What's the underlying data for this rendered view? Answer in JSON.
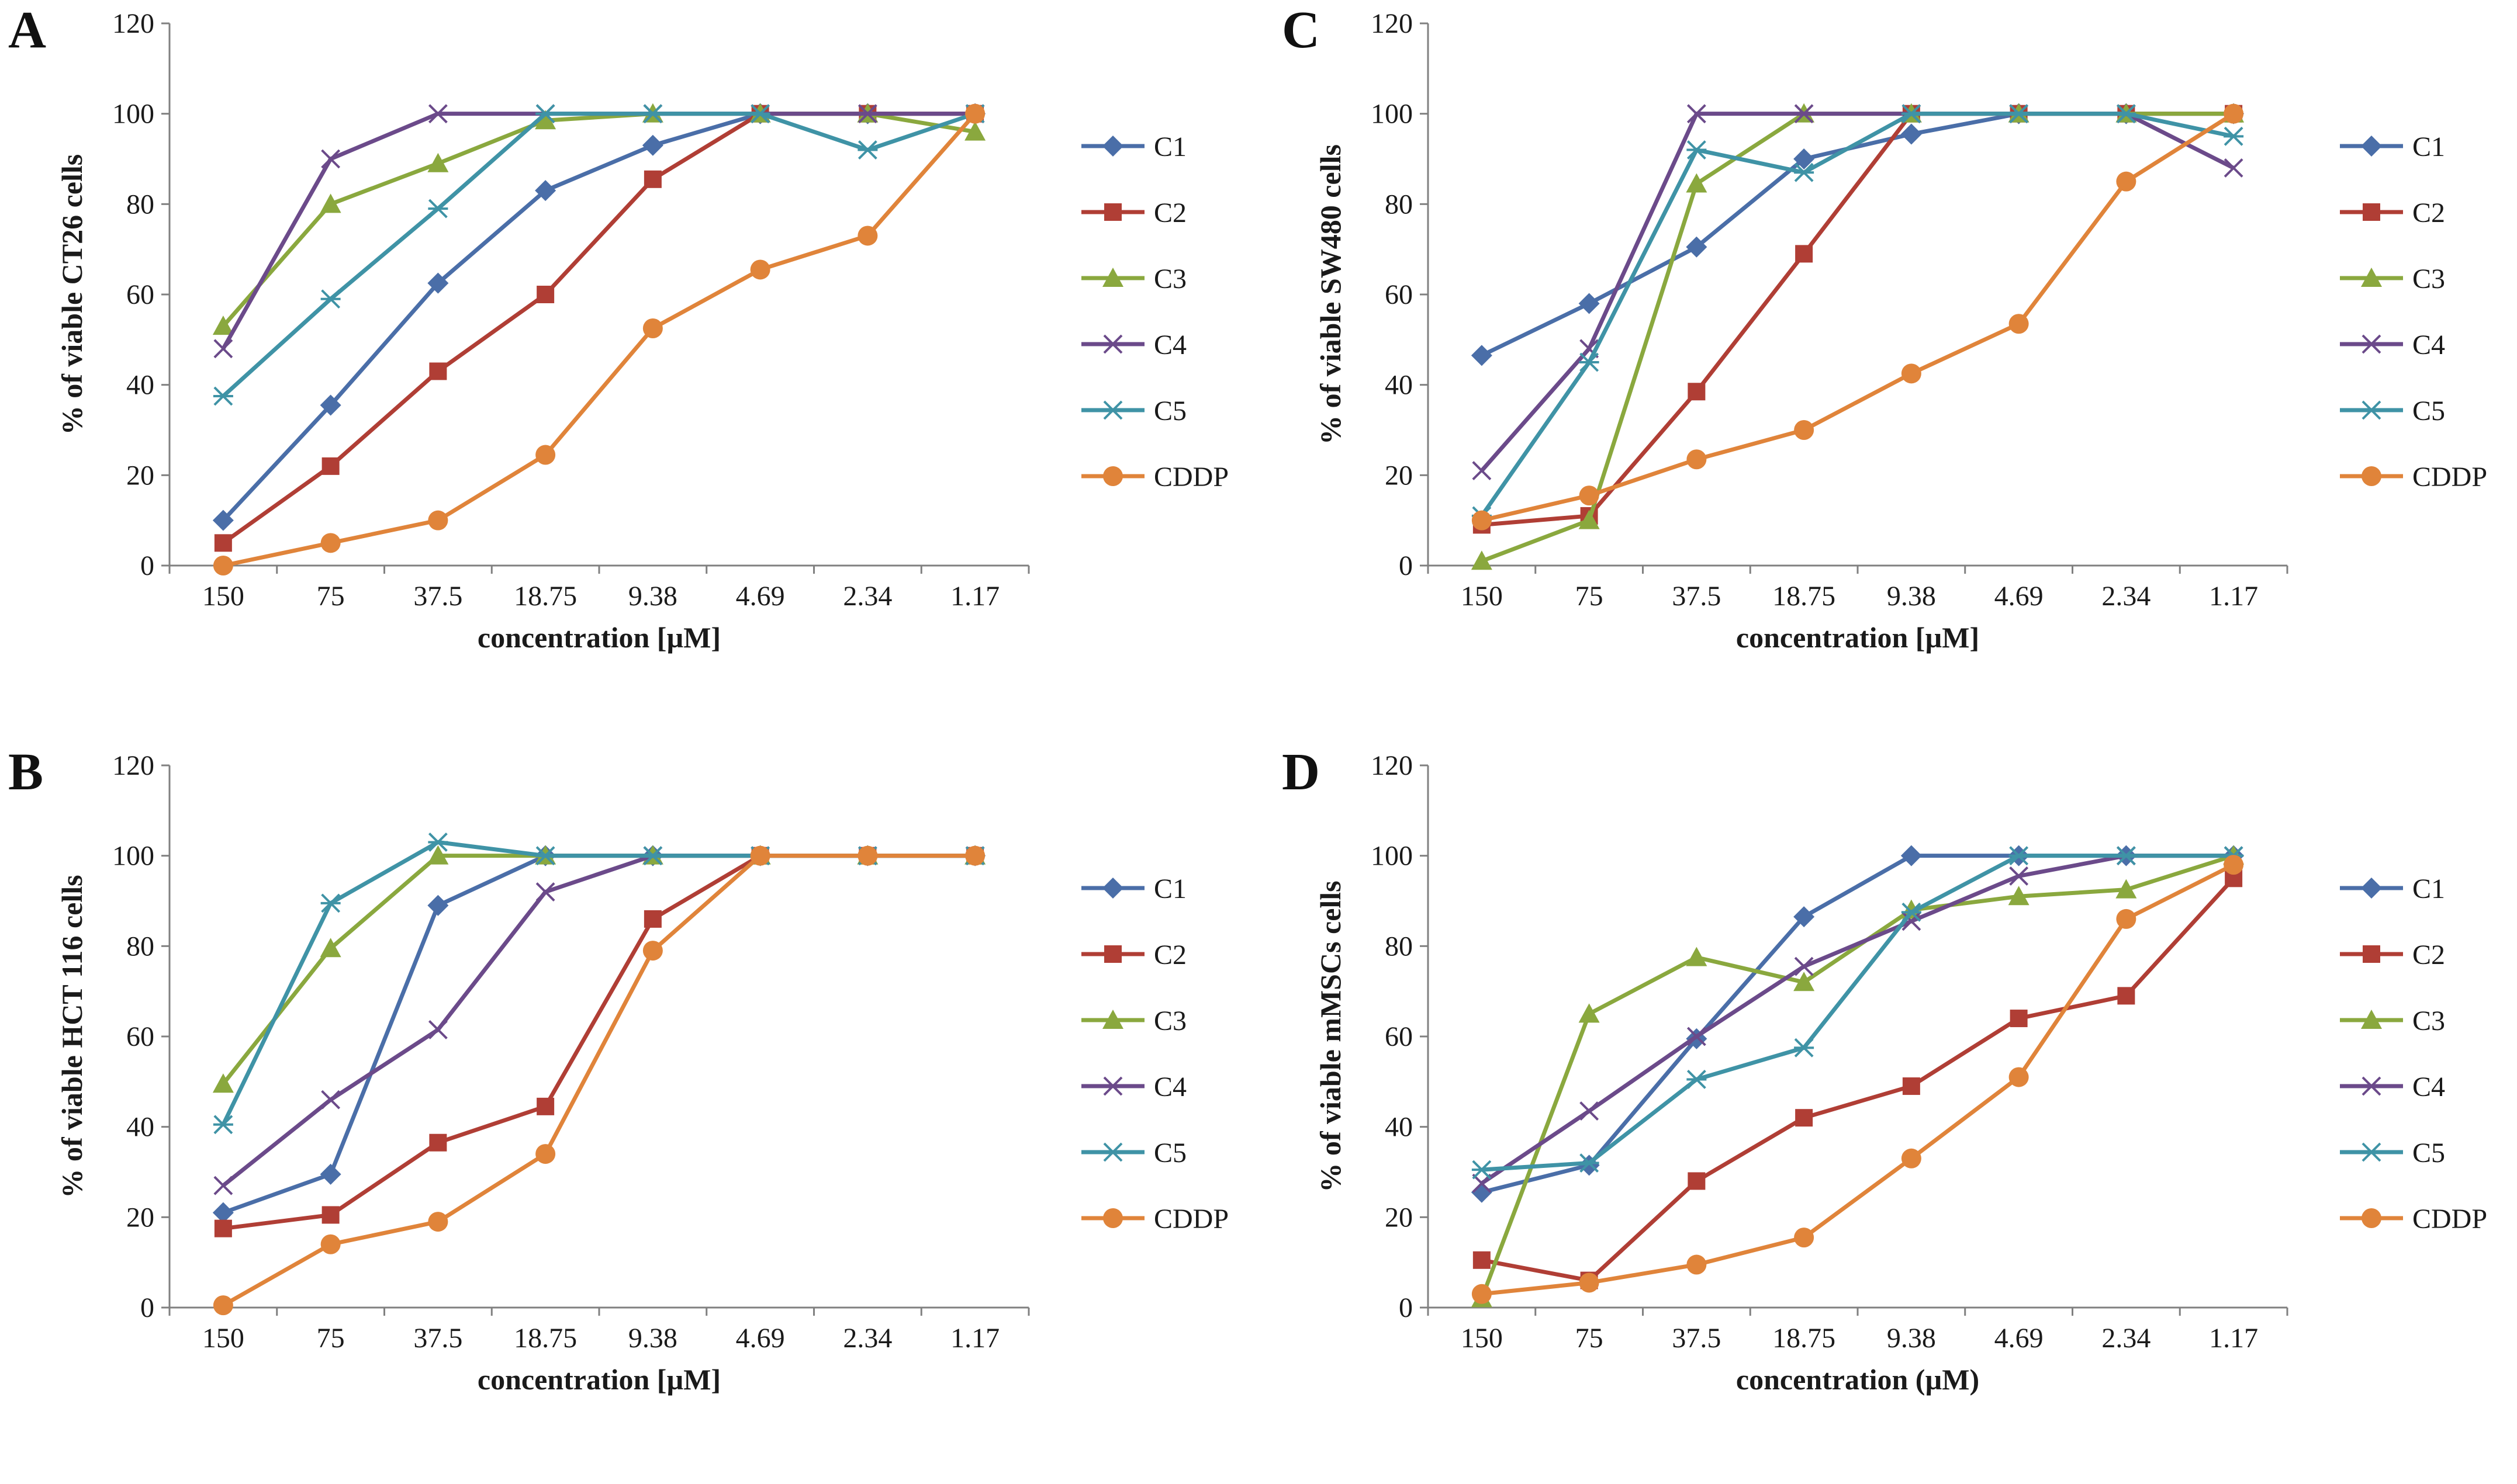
{
  "chart_data": [
    {
      "panel": "A",
      "type": "line",
      "categories": [
        "150",
        "75",
        "37.5",
        "18.75",
        "9.38",
        "4.69",
        "2.34",
        "1.17"
      ],
      "xlabel": "concentration [µM]",
      "ylabel": "% of viable CT26 cells",
      "ylim": [
        0,
        120
      ],
      "yticks": [
        "0",
        "20",
        "40",
        "60",
        "80",
        "100",
        "120"
      ],
      "grid": false,
      "legend_position": "right",
      "series": [
        {
          "name": "C1",
          "values": [
            10,
            35.5,
            62.5,
            83,
            93,
            100,
            100,
            100
          ]
        },
        {
          "name": "C2",
          "values": [
            5,
            22,
            43,
            60,
            85.5,
            100,
            100,
            100
          ]
        },
        {
          "name": "C3",
          "values": [
            53,
            80,
            89,
            98.5,
            100,
            100,
            100,
            96
          ]
        },
        {
          "name": "C4",
          "values": [
            48,
            90,
            100,
            100,
            100,
            100,
            100,
            100
          ]
        },
        {
          "name": "C5",
          "values": [
            37.5,
            59,
            79,
            100,
            100,
            100,
            92,
            100
          ]
        },
        {
          "name": "CDDP",
          "values": [
            0,
            5,
            10,
            24.5,
            52.5,
            65.5,
            73,
            100
          ]
        }
      ]
    },
    {
      "panel": "C",
      "type": "line",
      "categories": [
        "150",
        "75",
        "37.5",
        "18.75",
        "9.38",
        "4.69",
        "2.34",
        "1.17"
      ],
      "xlabel": "concentration [µM]",
      "ylabel": "% of viable SW480 cells",
      "ylim": [
        0,
        120
      ],
      "yticks": [
        "0",
        "20",
        "40",
        "60",
        "80",
        "100",
        "120"
      ],
      "grid": false,
      "legend_position": "right",
      "series": [
        {
          "name": "C1",
          "values": [
            46.5,
            58,
            70.5,
            90,
            95.5,
            100,
            100,
            100
          ]
        },
        {
          "name": "C2",
          "values": [
            9,
            11,
            38.5,
            69,
            100,
            100,
            100,
            100
          ]
        },
        {
          "name": "C3",
          "values": [
            1,
            10,
            84.5,
            100,
            100,
            100,
            100,
            100
          ]
        },
        {
          "name": "C4",
          "values": [
            21,
            48,
            100,
            100,
            100,
            100,
            100,
            88
          ]
        },
        {
          "name": "C5",
          "values": [
            11,
            45,
            92,
            87,
            100,
            100,
            100,
            95
          ]
        },
        {
          "name": "CDDP",
          "values": [
            10,
            15.5,
            23.5,
            30,
            42.5,
            53.5,
            85,
            100
          ]
        }
      ]
    },
    {
      "panel": "B",
      "type": "line",
      "categories": [
        "150",
        "75",
        "37.5",
        "18.75",
        "9.38",
        "4.69",
        "2.34",
        "1.17"
      ],
      "xlabel": "concentration [µM]",
      "ylabel": "% of viable HCT 116 cells",
      "ylim": [
        0,
        120
      ],
      "yticks": [
        "0",
        "20",
        "40",
        "60",
        "80",
        "100",
        "120"
      ],
      "grid": false,
      "legend_position": "right",
      "series": [
        {
          "name": "C1",
          "values": [
            21,
            29.5,
            89,
            100,
            100,
            100,
            100,
            100
          ]
        },
        {
          "name": "C2",
          "values": [
            17.5,
            20.5,
            36.5,
            44.5,
            86,
            100,
            100,
            100
          ]
        },
        {
          "name": "C3",
          "values": [
            49.5,
            79.5,
            100,
            100,
            100,
            100,
            100,
            100
          ]
        },
        {
          "name": "C4",
          "values": [
            27,
            46,
            61.5,
            92,
            100,
            100,
            100,
            100
          ]
        },
        {
          "name": "C5",
          "values": [
            40.5,
            89.5,
            103,
            100,
            100,
            100,
            100,
            100
          ]
        },
        {
          "name": "CDDP",
          "values": [
            0.5,
            14,
            19,
            34,
            79,
            100,
            100,
            100
          ]
        }
      ]
    },
    {
      "panel": "D",
      "type": "line",
      "categories": [
        "150",
        "75",
        "37.5",
        "18.75",
        "9.38",
        "4.69",
        "2.34",
        "1.17"
      ],
      "xlabel": "concentration (µM)",
      "ylabel": "% of viable mMSCs cells",
      "ylim": [
        0,
        120
      ],
      "yticks": [
        "0",
        "20",
        "40",
        "60",
        "80",
        "100",
        "120"
      ],
      "grid": false,
      "legend_position": "right",
      "series": [
        {
          "name": "C1",
          "values": [
            25.5,
            31.5,
            59.5,
            86.5,
            100,
            100,
            100,
            100
          ]
        },
        {
          "name": "C2",
          "values": [
            10.5,
            6,
            28,
            42,
            49,
            64,
            69,
            95
          ]
        },
        {
          "name": "C3",
          "values": [
            2,
            65,
            77.5,
            72,
            88,
            91,
            92.5,
            100
          ]
        },
        {
          "name": "C4",
          "values": [
            27.5,
            43.5,
            60,
            75.5,
            85.5,
            95.5,
            100,
            100
          ]
        },
        {
          "name": "C5",
          "values": [
            30.5,
            32,
            50.5,
            57.5,
            87.5,
            100,
            100,
            100
          ]
        },
        {
          "name": "CDDP",
          "values": [
            3,
            5.5,
            9.5,
            15.5,
            33,
            51,
            86,
            98
          ]
        }
      ]
    }
  ],
  "series_colors": {
    "C1": "#4a6ea8",
    "C2": "#b03e35",
    "C3": "#8aa83e",
    "C4": "#6b4a8a",
    "C5": "#3f93a6",
    "CDDP": "#e0843a"
  },
  "series_markers": {
    "C1": "diamond",
    "C2": "square",
    "C3": "triangle",
    "C4": "x-cross",
    "C5": "star-asterisk",
    "CDDP": "circle"
  }
}
